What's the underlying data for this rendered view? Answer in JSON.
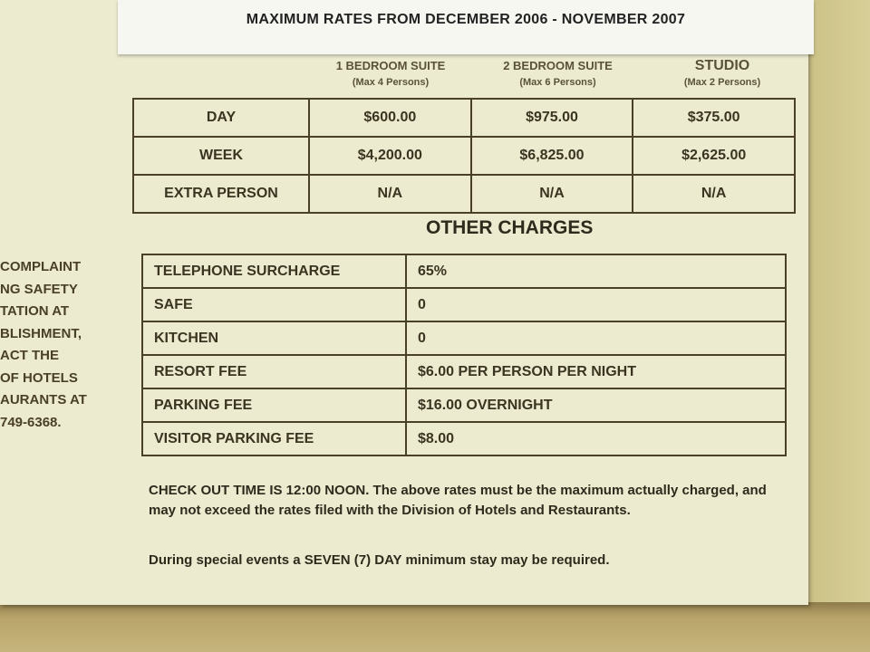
{
  "title": "MAXIMUM RATES FROM DECEMBER 2006 - NOVEMBER 2007",
  "rates": {
    "columns": [
      {
        "name": "1 BEDROOM SUITE",
        "sub": "(Max 4 Persons)"
      },
      {
        "name": "2 BEDROOM SUITE",
        "sub": "(Max 6 Persons)"
      },
      {
        "name": "STUDIO",
        "sub": "(Max 2 Persons)"
      }
    ],
    "rows": [
      {
        "label": "DAY",
        "values": [
          "$600.00",
          "$975.00",
          "$375.00"
        ]
      },
      {
        "label": "WEEK",
        "values": [
          "$4,200.00",
          "$6,825.00",
          "$2,625.00"
        ]
      },
      {
        "label": "EXTRA PERSON",
        "values": [
          "N/A",
          "N/A",
          "N/A"
        ]
      }
    ]
  },
  "other_charges": {
    "title": "OTHER CHARGES",
    "rows": [
      {
        "label": "TELEPHONE SURCHARGE",
        "value": "65%"
      },
      {
        "label": "SAFE",
        "value": "0"
      },
      {
        "label": "KITCHEN",
        "value": "0"
      },
      {
        "label": "RESORT FEE",
        "value": "$6.00 PER PERSON PER NIGHT"
      },
      {
        "label": "PARKING FEE",
        "value": "$16.00 OVERNIGHT"
      },
      {
        "label": "VISITOR PARKING FEE",
        "value": "$8.00"
      }
    ]
  },
  "side_text": [
    "COMPLAINT",
    "NG SAFETY",
    "TATION AT",
    "BLISHMENT,",
    "ACT THE",
    "OF HOTELS",
    "AURANTS AT",
    "749-6368."
  ],
  "notes": [
    "CHECK OUT TIME IS 12:00 NOON. The above rates must be the maximum actually charged, and may not exceed the rates filed with the Division of Hotels and Restaurants.",
    "During special events a SEVEN (7) DAY minimum stay may be required."
  ]
}
